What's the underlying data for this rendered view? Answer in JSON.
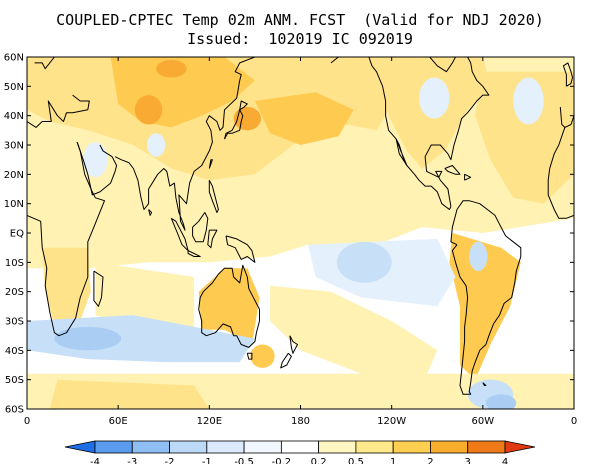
{
  "title": "COUPLED-CPTEC Temp 02m ANM. FCST  (Valid for NDJ 2020)",
  "subtitle": "Issued:  102019 IC 092019",
  "map": {
    "lat_ticks": [
      "60N",
      "50N",
      "40N",
      "30N",
      "20N",
      "10N",
      "EQ",
      "10S",
      "20S",
      "30S",
      "40S",
      "50S",
      "60S"
    ],
    "lon_ticks": [
      "0",
      "60E",
      "120E",
      "180",
      "120W",
      "60W",
      "0"
    ]
  },
  "colorbar": {
    "labels": [
      "-4",
      "-3",
      "-2",
      "-1",
      "-0.5",
      "-0.2",
      "0.2",
      "0.5",
      "1",
      "2",
      "3",
      "4"
    ],
    "colors": [
      "#1e6fe6",
      "#5a9bee",
      "#8ebef3",
      "#bcd9f8",
      "#dbeafc",
      "#f2f7fe",
      "#ffffff",
      "#fff6c2",
      "#ffe98a",
      "#ffcf52",
      "#f9ad2c",
      "#f07a18",
      "#e23a10"
    ]
  },
  "palette": {
    "ocean": "#ffffff",
    "warm_light": "#fff2b3",
    "warm_mid": "#ffe38a",
    "warm_strong": "#ffca50",
    "warm_hot": "#f8aa32",
    "cool_light": "#e4f0fb",
    "cool_mid": "#c8e0f7",
    "cool_strong": "#a9cdf3",
    "coast": "#000000"
  }
}
